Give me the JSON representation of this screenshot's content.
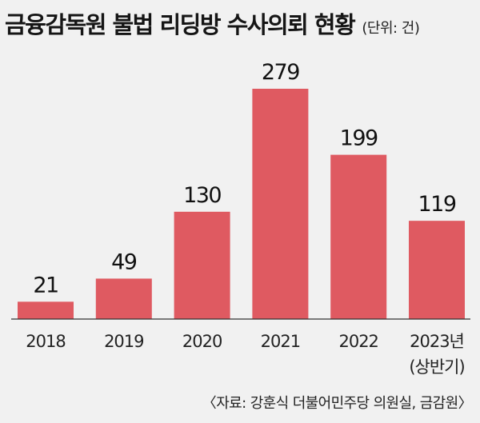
{
  "title": "금융감독원 불법 리딩방 수사의뢰 현황",
  "unit": "(단위: 건)",
  "source": "〈자료: 강훈식 더불어민주당 의원실, 금감원〉",
  "colors": {
    "bar": "#df5a61",
    "background": "#f1f1f1",
    "baseline": "#333333"
  },
  "chart_data": {
    "type": "bar",
    "title": "금융감독원 불법 리딩방 수사의뢰 현황",
    "unit": "(단위: 건)",
    "categories": [
      "2018",
      "2019",
      "2020",
      "2021",
      "2022",
      "2023년"
    ],
    "category_notes": [
      "",
      "",
      "",
      "",
      "",
      "(상반기)"
    ],
    "values": [
      21,
      49,
      130,
      279,
      199,
      119
    ],
    "ylim": [
      0,
      279
    ],
    "grid": false,
    "legend": "none"
  }
}
